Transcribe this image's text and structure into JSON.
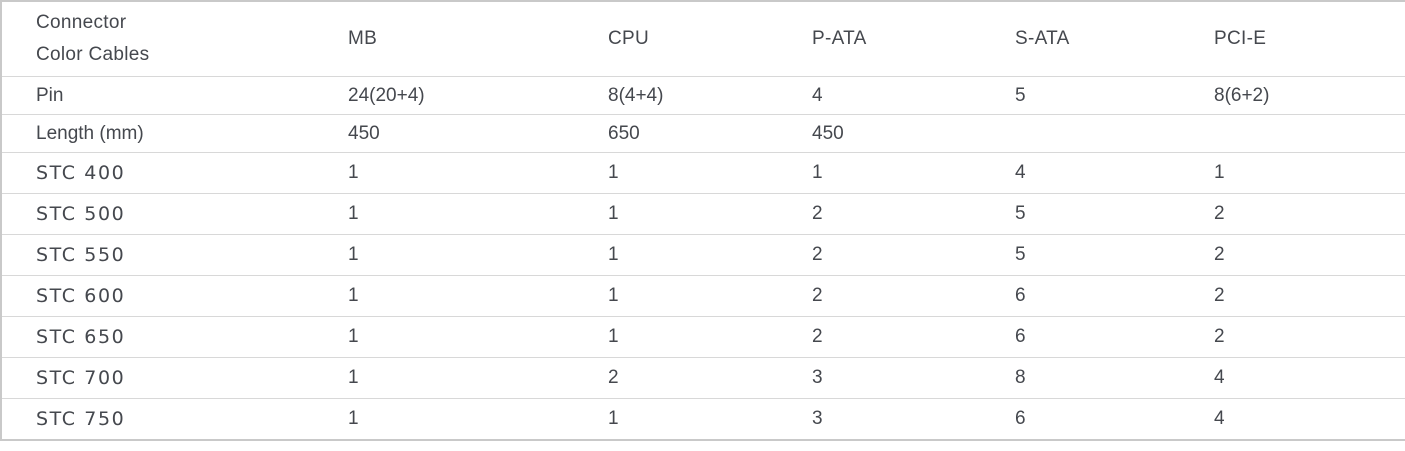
{
  "table": {
    "corner": {
      "line1": "Connector",
      "line2": "Color Cables"
    },
    "columns": [
      "MB",
      "CPU",
      "P-ATA",
      "S-ATA",
      "PCI-E"
    ],
    "spec_rows": [
      {
        "label": "Pin",
        "values": [
          "24(20+4)",
          "8(4+4)",
          "4",
          "5",
          "8(6+2)"
        ]
      },
      {
        "label": "Length (mm)",
        "values": [
          "450",
          "650",
          "450",
          "",
          ""
        ]
      }
    ],
    "product_rows": [
      {
        "label": "STC 400",
        "values": [
          "1",
          "1",
          "1",
          "4",
          "1"
        ]
      },
      {
        "label": "STC 500",
        "values": [
          "1",
          "1",
          "2",
          "5",
          "2"
        ]
      },
      {
        "label": "STC 550",
        "values": [
          "1",
          "1",
          "2",
          "5",
          "2"
        ]
      },
      {
        "label": "STC 600",
        "values": [
          "1",
          "1",
          "2",
          "6",
          "2"
        ]
      },
      {
        "label": "STC 650",
        "values": [
          "1",
          "1",
          "2",
          "6",
          "2"
        ]
      },
      {
        "label": "STC 700",
        "values": [
          "1",
          "2",
          "3",
          "8",
          "4"
        ]
      },
      {
        "label": "STC 750",
        "values": [
          "1",
          "1",
          "3",
          "6",
          "4"
        ]
      }
    ],
    "colors": {
      "accent_orange": "#e87522",
      "text": "#45484e",
      "outer_border": "#c9c9c9",
      "row_divider": "#d8d8d8",
      "background": "#ffffff"
    }
  }
}
